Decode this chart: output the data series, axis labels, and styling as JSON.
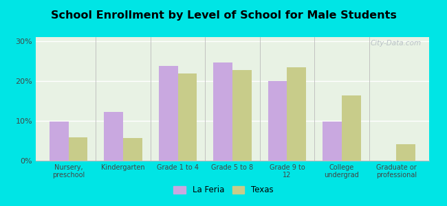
{
  "title": "School Enrollment by Level of School for Male Students",
  "categories": [
    "Nursery,\npreschool",
    "Kindergarten",
    "Grade 1 to 4",
    "Grade 5 to 8",
    "Grade 9 to\n12",
    "College\nundergrad",
    "Graduate or\nprofessional"
  ],
  "la_feria": [
    9.8,
    12.3,
    23.8,
    24.7,
    20.0,
    9.8,
    0.0
  ],
  "texas": [
    5.8,
    5.7,
    21.8,
    22.8,
    23.5,
    16.3,
    4.2
  ],
  "la_feria_color": "#c9a8e0",
  "texas_color": "#c8cc8a",
  "background_color": "#00e5e5",
  "plot_bg": "#e8f2e4",
  "yticks": [
    0,
    10,
    20,
    30
  ],
  "ylim": [
    0,
    31
  ],
  "legend_labels": [
    "La Feria",
    "Texas"
  ],
  "title_fontsize": 11.5,
  "watermark": "City-Data.com"
}
